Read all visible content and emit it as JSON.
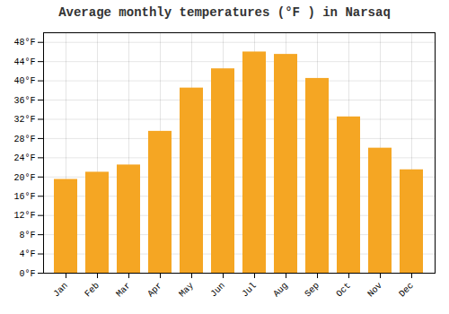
{
  "chart_data": {
    "type": "bar",
    "title": "Average monthly temperatures (°F ) in Narsaq",
    "categories": [
      "Jan",
      "Feb",
      "Mar",
      "Apr",
      "May",
      "Jun",
      "Jul",
      "Aug",
      "Sep",
      "Oct",
      "Nov",
      "Dec"
    ],
    "values": [
      19.5,
      21.0,
      22.5,
      29.5,
      38.5,
      42.5,
      46.0,
      45.5,
      40.5,
      32.5,
      26.0,
      21.5
    ],
    "color": "#F5A623",
    "ylim": [
      0,
      50
    ],
    "yticks": [
      {
        "value": 0,
        "label": "0°F"
      },
      {
        "value": 4,
        "label": "4°F"
      },
      {
        "value": 8,
        "label": "8°F"
      },
      {
        "value": 12,
        "label": "12°F"
      },
      {
        "value": 16,
        "label": "16°F"
      },
      {
        "value": 20,
        "label": "20°F"
      },
      {
        "value": 24,
        "label": "24°F"
      },
      {
        "value": 28,
        "label": "28°F"
      },
      {
        "value": 32,
        "label": "32°F"
      },
      {
        "value": 36,
        "label": "36°F"
      },
      {
        "value": 40,
        "label": "40°F"
      },
      {
        "value": 44,
        "label": "44°F"
      },
      {
        "value": 48,
        "label": "48°F"
      }
    ],
    "grid": true
  }
}
